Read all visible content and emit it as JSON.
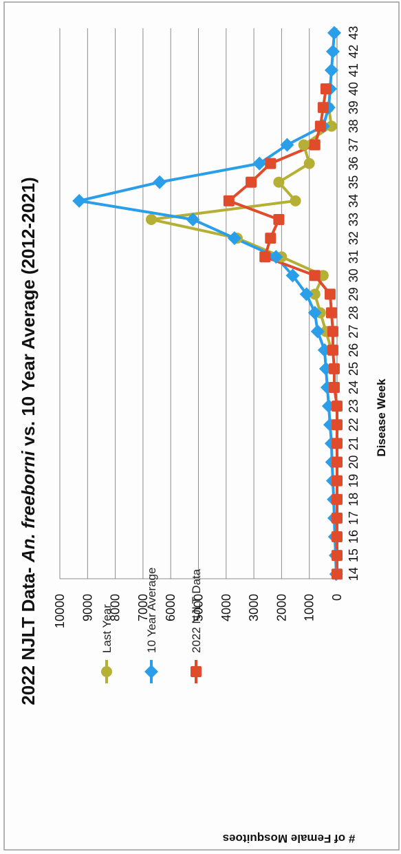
{
  "chart_data": {
    "type": "line",
    "title": "2022 NJLT Data- ",
    "title_italic": "An. freeborni",
    "title_rest": " vs. 10 Year Average (2012-2021)",
    "xlabel": "Disease Week",
    "ylabel": "# of Female Mosquitoes",
    "categories": [
      "14",
      "15",
      "16",
      "17",
      "18",
      "19",
      "20",
      "21",
      "22",
      "23",
      "24",
      "25",
      "26",
      "27",
      "28",
      "29",
      "30",
      "31",
      "32",
      "33",
      "34",
      "35",
      "36",
      "37",
      "38",
      "39",
      "40",
      "41",
      "42",
      "43"
    ],
    "ylim": [
      0,
      10000
    ],
    "yticks": [
      "0",
      "1000",
      "2000",
      "3000",
      "4000",
      "5000",
      "6000",
      "7000",
      "8000",
      "9000",
      "10000"
    ],
    "grid": true,
    "legend_position": "top-left",
    "orientation": "rotated 90° counter-clockwise",
    "series": [
      {
        "name": "Last Year",
        "color": "#b5b035",
        "marker": "circle",
        "values": [
          null,
          null,
          null,
          null,
          null,
          null,
          null,
          null,
          null,
          null,
          null,
          null,
          200,
          400,
          600,
          800,
          500,
          2000,
          3600,
          6700,
          1500,
          2100,
          1000,
          1200,
          200,
          300,
          null,
          null,
          null,
          null
        ]
      },
      {
        "name": "10 Year Average",
        "color": "#2a9ee8",
        "marker": "diamond",
        "values": [
          30,
          50,
          80,
          100,
          120,
          150,
          180,
          200,
          250,
          300,
          350,
          400,
          450,
          700,
          800,
          1100,
          1600,
          2200,
          3700,
          5200,
          9300,
          6400,
          2800,
          1800,
          500,
          300,
          250,
          200,
          150,
          100
        ]
      },
      {
        "name": "2022 NJLT Data",
        "color": "#e04b2c",
        "marker": "square",
        "values": [
          0,
          0,
          0,
          0,
          0,
          0,
          0,
          0,
          0,
          0,
          100,
          100,
          150,
          150,
          200,
          250,
          800,
          2600,
          2400,
          2100,
          3900,
          3100,
          2400,
          800,
          600,
          500,
          400,
          null,
          null,
          null
        ]
      }
    ]
  }
}
